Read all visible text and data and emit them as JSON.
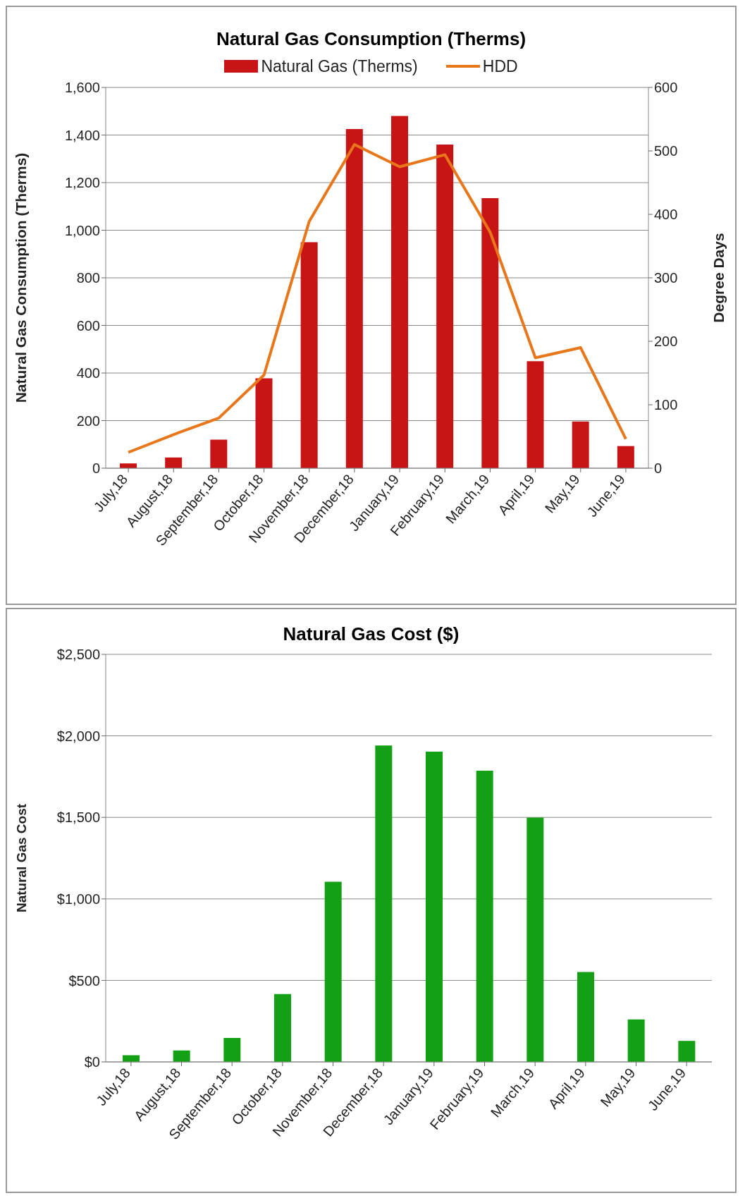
{
  "chart_data": [
    {
      "type": "bar",
      "title": "Natural Gas Consumption (Therms)",
      "ylabel": "Natural Gas Consumption (Therms)",
      "y2label": "Degree Days",
      "categories": [
        "July,18",
        "August,18",
        "September,18",
        "October,18",
        "November,18",
        "December,18",
        "January,19",
        "February,19",
        "March,19",
        "April,19",
        "May,19",
        "June,19"
      ],
      "series": [
        {
          "name": "Natural Gas (Therms)",
          "color": "#c81414",
          "values": [
            20,
            45,
            120,
            378,
            950,
            1425,
            1480,
            1360,
            1135,
            450,
            196,
            93
          ]
        },
        {
          "name": "HDD",
          "type": "line",
          "axis": "y2",
          "color": "#e8761a",
          "values": [
            25,
            53,
            79,
            147,
            389,
            510,
            475,
            494,
            372,
            174,
            190,
            46
          ]
        }
      ],
      "ylim": [
        0,
        1600
      ],
      "yticks": [
        0,
        {
          "value": 200,
          "label": "200"
        },
        {
          "value": 400,
          "label": "400"
        },
        {
          "value": 600,
          "label": "600"
        },
        {
          "value": 800,
          "label": "800"
        },
        {
          "value": 1000,
          "label": "1,000"
        },
        {
          "value": 1200,
          "label": "1,200"
        },
        {
          "value": 1400,
          "label": "1,400"
        },
        {
          "value": 1600,
          "label": "1,600"
        }
      ],
      "y2lim": [
        0,
        600
      ],
      "y2ticks": [
        0,
        100,
        200,
        300,
        400,
        500,
        600
      ],
      "grid": "y",
      "legend": "top",
      "marker": "none"
    },
    {
      "type": "bar",
      "title": "Natural Gas Cost ($)",
      "ylabel": "Natural Gas Cost",
      "categories": [
        "July,18",
        "August,18",
        "September,18",
        "October,18",
        "November,18",
        "December,18",
        "January,19",
        "February,19",
        "March,19",
        "April,19",
        "May,19",
        "June,19"
      ],
      "series": [
        {
          "color": "#14a014",
          "values": [
            41,
            70,
            147,
            416,
            1105,
            1941,
            1903,
            1786,
            1499,
            551,
            261,
            129
          ]
        }
      ],
      "ylim": [
        0,
        2500
      ],
      "yticks": [
        {
          "value": 0,
          "label": "$0"
        },
        {
          "value": 500,
          "label": "$500"
        },
        {
          "value": 1000,
          "label": "$1,000"
        },
        {
          "value": 1500,
          "label": "$1,500"
        },
        {
          "value": 2000,
          "label": "$2,000"
        },
        {
          "value": 2500,
          "label": "$2,500"
        }
      ],
      "grid": "y",
      "legend": false
    }
  ]
}
